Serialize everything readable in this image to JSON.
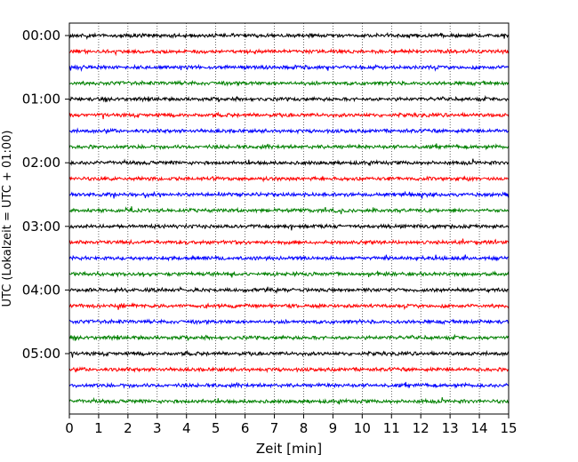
{
  "chart_data": {
    "type": "line",
    "title": "",
    "xlabel": "Zeit  [min]",
    "ylabel": "UTC (Lokalzeit = UTC + 01:00)",
    "xlim": [
      0,
      15
    ],
    "x_ticks": [
      "0",
      "1",
      "2",
      "3",
      "4",
      "5",
      "6",
      "7",
      "8",
      "9",
      "10",
      "11",
      "12",
      "13",
      "14",
      "15"
    ],
    "y_tick_labels": [
      "00:00",
      "01:00",
      "02:00",
      "03:00",
      "04:00",
      "05:00"
    ],
    "grid": "vertical dotted",
    "trace_interval_minutes": 15,
    "traces": [
      {
        "start": "00:00",
        "color": "#000000"
      },
      {
        "start": "00:15",
        "color": "#ff0000"
      },
      {
        "start": "00:30",
        "color": "#0000ff"
      },
      {
        "start": "00:45",
        "color": "#008000"
      },
      {
        "start": "01:00",
        "color": "#000000"
      },
      {
        "start": "01:15",
        "color": "#ff0000"
      },
      {
        "start": "01:30",
        "color": "#0000ff"
      },
      {
        "start": "01:45",
        "color": "#008000"
      },
      {
        "start": "02:00",
        "color": "#000000"
      },
      {
        "start": "02:15",
        "color": "#ff0000"
      },
      {
        "start": "02:30",
        "color": "#0000ff"
      },
      {
        "start": "02:45",
        "color": "#008000"
      },
      {
        "start": "03:00",
        "color": "#000000"
      },
      {
        "start": "03:15",
        "color": "#ff0000"
      },
      {
        "start": "03:30",
        "color": "#0000ff"
      },
      {
        "start": "03:45",
        "color": "#008000"
      },
      {
        "start": "04:00",
        "color": "#000000"
      },
      {
        "start": "04:15",
        "color": "#ff0000"
      },
      {
        "start": "04:30",
        "color": "#0000ff"
      },
      {
        "start": "04:45",
        "color": "#008000"
      },
      {
        "start": "05:00",
        "color": "#000000"
      },
      {
        "start": "05:15",
        "color": "#ff0000"
      },
      {
        "start": "05:30",
        "color": "#0000ff"
      },
      {
        "start": "05:45",
        "color": "#008000"
      }
    ]
  }
}
